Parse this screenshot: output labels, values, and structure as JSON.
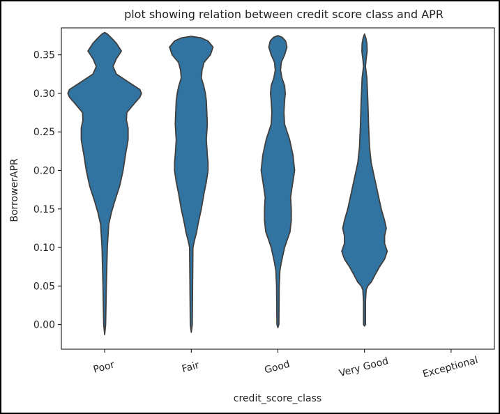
{
  "chart_data": {
    "type": "violin",
    "title": "plot showing relation between credit score class and APR",
    "xlabel": "credit_score_class",
    "ylabel": "BorrowerAPR",
    "categories": [
      "Poor",
      "Fair",
      "Good",
      "Very Good",
      "Exceptional"
    ],
    "yticks": [
      0.0,
      0.05,
      0.1,
      0.15,
      0.2,
      0.25,
      0.3,
      0.35
    ],
    "ytick_labels": [
      "0.00",
      "0.05",
      "0.10",
      "0.15",
      "0.20",
      "0.25",
      "0.30",
      "0.35"
    ],
    "ylim": [
      -0.032,
      0.385
    ],
    "grid": false,
    "color": "#3274a1",
    "edge_color": "#3f3f3f",
    "violins": [
      {
        "category": "Poor",
        "min": -0.013,
        "max": 0.379,
        "profile": [
          [
            -0.013,
            0.0
          ],
          [
            0.0,
            0.003
          ],
          [
            0.05,
            0.005
          ],
          [
            0.1,
            0.008
          ],
          [
            0.13,
            0.012
          ],
          [
            0.145,
            0.02
          ],
          [
            0.16,
            0.03
          ],
          [
            0.18,
            0.045
          ],
          [
            0.2,
            0.055
          ],
          [
            0.22,
            0.062
          ],
          [
            0.24,
            0.07
          ],
          [
            0.255,
            0.07
          ],
          [
            0.265,
            0.065
          ],
          [
            0.275,
            0.066
          ],
          [
            0.285,
            0.085
          ],
          [
            0.295,
            0.105
          ],
          [
            0.3,
            0.11
          ],
          [
            0.305,
            0.105
          ],
          [
            0.315,
            0.07
          ],
          [
            0.325,
            0.035
          ],
          [
            0.335,
            0.025
          ],
          [
            0.345,
            0.035
          ],
          [
            0.355,
            0.05
          ],
          [
            0.365,
            0.035
          ],
          [
            0.372,
            0.02
          ],
          [
            0.377,
            0.008
          ],
          [
            0.379,
            0.0
          ]
        ]
      },
      {
        "category": "Fair",
        "min": -0.01,
        "max": 0.374,
        "profile": [
          [
            -0.01,
            0.0
          ],
          [
            0.0,
            0.003
          ],
          [
            0.05,
            0.004
          ],
          [
            0.1,
            0.005
          ],
          [
            0.11,
            0.01
          ],
          [
            0.12,
            0.016
          ],
          [
            0.13,
            0.02
          ],
          [
            0.15,
            0.03
          ],
          [
            0.17,
            0.038
          ],
          [
            0.185,
            0.045
          ],
          [
            0.2,
            0.05
          ],
          [
            0.21,
            0.05
          ],
          [
            0.22,
            0.048
          ],
          [
            0.24,
            0.045
          ],
          [
            0.26,
            0.048
          ],
          [
            0.28,
            0.046
          ],
          [
            0.29,
            0.045
          ],
          [
            0.3,
            0.042
          ],
          [
            0.31,
            0.037
          ],
          [
            0.32,
            0.03
          ],
          [
            0.33,
            0.032
          ],
          [
            0.34,
            0.038
          ],
          [
            0.35,
            0.057
          ],
          [
            0.36,
            0.065
          ],
          [
            0.368,
            0.05
          ],
          [
            0.372,
            0.03
          ],
          [
            0.374,
            0.0
          ]
        ]
      },
      {
        "category": "Good",
        "min": -0.004,
        "max": 0.375,
        "profile": [
          [
            -0.004,
            0.0
          ],
          [
            0.0,
            0.003
          ],
          [
            0.05,
            0.004
          ],
          [
            0.07,
            0.006
          ],
          [
            0.08,
            0.01
          ],
          [
            0.09,
            0.015
          ],
          [
            0.1,
            0.02
          ],
          [
            0.11,
            0.028
          ],
          [
            0.12,
            0.036
          ],
          [
            0.135,
            0.04
          ],
          [
            0.15,
            0.04
          ],
          [
            0.165,
            0.038
          ],
          [
            0.18,
            0.043
          ],
          [
            0.2,
            0.05
          ],
          [
            0.22,
            0.045
          ],
          [
            0.24,
            0.035
          ],
          [
            0.26,
            0.02
          ],
          [
            0.275,
            0.018
          ],
          [
            0.29,
            0.02
          ],
          [
            0.3,
            0.022
          ],
          [
            0.31,
            0.02
          ],
          [
            0.32,
            0.012
          ],
          [
            0.33,
            0.008
          ],
          [
            0.34,
            0.01
          ],
          [
            0.35,
            0.02
          ],
          [
            0.36,
            0.027
          ],
          [
            0.368,
            0.023
          ],
          [
            0.373,
            0.012
          ],
          [
            0.375,
            0.0
          ]
        ]
      },
      {
        "category": "Very Good",
        "min": -0.002,
        "max": 0.377,
        "profile": [
          [
            -0.002,
            0.0
          ],
          [
            0.0,
            0.003
          ],
          [
            0.03,
            0.003
          ],
          [
            0.045,
            0.005
          ],
          [
            0.05,
            0.01
          ],
          [
            0.055,
            0.02
          ],
          [
            0.065,
            0.032
          ],
          [
            0.075,
            0.045
          ],
          [
            0.085,
            0.06
          ],
          [
            0.095,
            0.068
          ],
          [
            0.105,
            0.06
          ],
          [
            0.115,
            0.06
          ],
          [
            0.125,
            0.065
          ],
          [
            0.135,
            0.06
          ],
          [
            0.15,
            0.05
          ],
          [
            0.17,
            0.04
          ],
          [
            0.19,
            0.03
          ],
          [
            0.21,
            0.02
          ],
          [
            0.23,
            0.015
          ],
          [
            0.26,
            0.012
          ],
          [
            0.29,
            0.01
          ],
          [
            0.32,
            0.007
          ],
          [
            0.335,
            0.003
          ],
          [
            0.345,
            0.005
          ],
          [
            0.355,
            0.008
          ],
          [
            0.365,
            0.007
          ],
          [
            0.372,
            0.004
          ],
          [
            0.377,
            0.0
          ]
        ]
      }
    ]
  }
}
